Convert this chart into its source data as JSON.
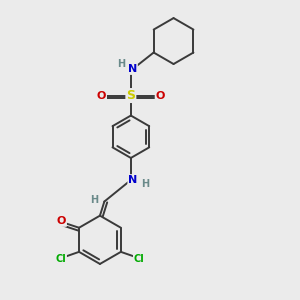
{
  "background_color": "#ebebeb",
  "atom_colors": {
    "C": "#3a3a3a",
    "H": "#6a8a8a",
    "N": "#0000cc",
    "O": "#cc0000",
    "S": "#cccc00",
    "Cl": "#00aa00"
  },
  "bond_color": "#3a3a3a",
  "bond_width": 1.4,
  "figsize": [
    3.0,
    3.0
  ],
  "dpi": 100
}
